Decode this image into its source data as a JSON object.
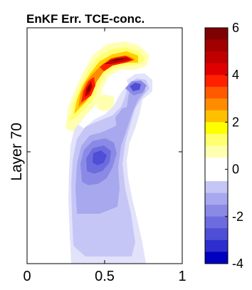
{
  "chart_data": {
    "type": "contour",
    "title": "EnKF Err. TCE-conc.",
    "xlabel": "",
    "ylabel": "Layer 70",
    "xlim": [
      0,
      1
    ],
    "x_ticks": [
      {
        "value": 0,
        "label": "0"
      },
      {
        "value": 0.5,
        "label": "0.5"
      },
      {
        "value": 1,
        "label": "1"
      }
    ],
    "colorbar": {
      "range": [
        -4,
        6
      ],
      "ticks": [
        {
          "value": 6,
          "label": "6"
        },
        {
          "value": 4,
          "label": "4"
        },
        {
          "value": 2,
          "label": "2"
        },
        {
          "value": 0,
          "label": "0"
        },
        {
          "value": -2,
          "label": "-2"
        },
        {
          "value": -4,
          "label": "-4"
        }
      ],
      "levels": [
        "#7f0000",
        "#a00000",
        "#c00000",
        "#e00000",
        "#ff2000",
        "#ff5a00",
        "#ff8c00",
        "#ffc000",
        "#ffff00",
        "#ffff70",
        "#ffffb0",
        "#ffffff",
        "#ffffff",
        "#c6c6f6",
        "#a8a8ee",
        "#8a8ae6",
        "#6c6cde",
        "#4e4ed6",
        "#2e2ece",
        "#0000c0"
      ]
    },
    "features": [
      {
        "name": "positive error plume upper",
        "peak": 6,
        "color": "#b00000"
      },
      {
        "name": "positive error plume left",
        "peak": 5.5,
        "color": "#b00000"
      },
      {
        "name": "negative error core upper",
        "peak": -3,
        "color": "#3030d0"
      },
      {
        "name": "negative error core lower",
        "peak": -2.5,
        "color": "#3030d0"
      }
    ]
  }
}
